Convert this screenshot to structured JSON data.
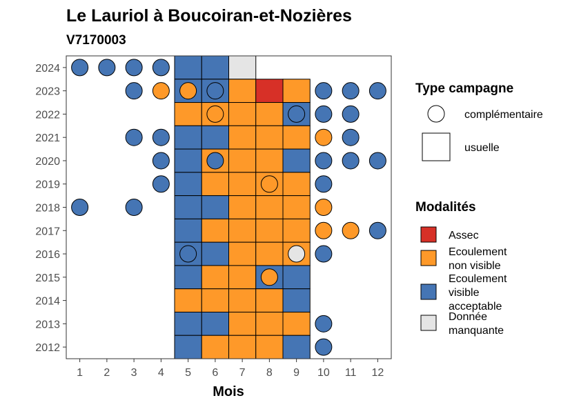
{
  "chart_data": {
    "type": "heatmap",
    "title": "Le Lauriol à Boucoiran-et-Nozières",
    "subtitle": "V7170003",
    "xlabel": "Mois",
    "ylabel": "",
    "x_ticks": [
      "1",
      "2",
      "3",
      "4",
      "5",
      "6",
      "7",
      "8",
      "9",
      "10",
      "11",
      "12"
    ],
    "y_ticks": [
      "2012",
      "2013",
      "2014",
      "2015",
      "2016",
      "2017",
      "2018",
      "2019",
      "2020",
      "2021",
      "2022",
      "2023",
      "2024"
    ],
    "xlim": [
      0.5,
      12.5
    ],
    "ylim": [
      2011.5,
      2024.5
    ],
    "colors": {
      "Assec": "#d73027",
      "Ecoulement non visible": "#fe9929",
      "Ecoulement visible acceptable": "#4575b4",
      "Donnée manquante": "#e5e5e5"
    },
    "legend_campaign": {
      "title": "Type campagne",
      "items": [
        "complémentaire",
        "usuelle"
      ]
    },
    "legend_modalites": {
      "title": "Modalités",
      "items": [
        {
          "key": "Assec",
          "lines": [
            "Assec"
          ]
        },
        {
          "key": "Ecoulement non visible",
          "lines": [
            "Ecoulement",
            "non visible"
          ]
        },
        {
          "key": "Ecoulement visible acceptable",
          "lines": [
            "Ecoulement",
            "visible",
            "acceptable"
          ]
        },
        {
          "key": "Donnée manquante",
          "lines": [
            "Donnée",
            "manquante"
          ]
        }
      ]
    },
    "usuelle": [
      {
        "year": 2024,
        "month": 5,
        "modalite": "Ecoulement visible acceptable"
      },
      {
        "year": 2024,
        "month": 6,
        "modalite": "Ecoulement visible acceptable"
      },
      {
        "year": 2024,
        "month": 7,
        "modalite": "Donnée manquante"
      },
      {
        "year": 2023,
        "month": 5,
        "modalite": "Ecoulement visible acceptable"
      },
      {
        "year": 2023,
        "month": 6,
        "modalite": "Ecoulement visible acceptable"
      },
      {
        "year": 2023,
        "month": 7,
        "modalite": "Ecoulement non visible"
      },
      {
        "year": 2023,
        "month": 8,
        "modalite": "Assec"
      },
      {
        "year": 2023,
        "month": 9,
        "modalite": "Ecoulement non visible"
      },
      {
        "year": 2022,
        "month": 5,
        "modalite": "Ecoulement non visible"
      },
      {
        "year": 2022,
        "month": 6,
        "modalite": "Ecoulement non visible"
      },
      {
        "year": 2022,
        "month": 7,
        "modalite": "Ecoulement non visible"
      },
      {
        "year": 2022,
        "month": 8,
        "modalite": "Ecoulement non visible"
      },
      {
        "year": 2022,
        "month": 9,
        "modalite": "Ecoulement visible acceptable"
      },
      {
        "year": 2021,
        "month": 5,
        "modalite": "Ecoulement visible acceptable"
      },
      {
        "year": 2021,
        "month": 6,
        "modalite": "Ecoulement visible acceptable"
      },
      {
        "year": 2021,
        "month": 7,
        "modalite": "Ecoulement non visible"
      },
      {
        "year": 2021,
        "month": 8,
        "modalite": "Ecoulement non visible"
      },
      {
        "year": 2021,
        "month": 9,
        "modalite": "Ecoulement non visible"
      },
      {
        "year": 2020,
        "month": 5,
        "modalite": "Ecoulement visible acceptable"
      },
      {
        "year": 2020,
        "month": 6,
        "modalite": "Ecoulement non visible"
      },
      {
        "year": 2020,
        "month": 7,
        "modalite": "Ecoulement non visible"
      },
      {
        "year": 2020,
        "month": 8,
        "modalite": "Ecoulement non visible"
      },
      {
        "year": 2020,
        "month": 9,
        "modalite": "Ecoulement visible acceptable"
      },
      {
        "year": 2019,
        "month": 5,
        "modalite": "Ecoulement visible acceptable"
      },
      {
        "year": 2019,
        "month": 6,
        "modalite": "Ecoulement non visible"
      },
      {
        "year": 2019,
        "month": 7,
        "modalite": "Ecoulement non visible"
      },
      {
        "year": 2019,
        "month": 8,
        "modalite": "Ecoulement non visible"
      },
      {
        "year": 2019,
        "month": 9,
        "modalite": "Ecoulement non visible"
      },
      {
        "year": 2018,
        "month": 5,
        "modalite": "Ecoulement visible acceptable"
      },
      {
        "year": 2018,
        "month": 6,
        "modalite": "Ecoulement visible acceptable"
      },
      {
        "year": 2018,
        "month": 7,
        "modalite": "Ecoulement non visible"
      },
      {
        "year": 2018,
        "month": 8,
        "modalite": "Ecoulement non visible"
      },
      {
        "year": 2018,
        "month": 9,
        "modalite": "Ecoulement non visible"
      },
      {
        "year": 2017,
        "month": 5,
        "modalite": "Ecoulement visible acceptable"
      },
      {
        "year": 2017,
        "month": 6,
        "modalite": "Ecoulement non visible"
      },
      {
        "year": 2017,
        "month": 7,
        "modalite": "Ecoulement non visible"
      },
      {
        "year": 2017,
        "month": 8,
        "modalite": "Ecoulement non visible"
      },
      {
        "year": 2017,
        "month": 9,
        "modalite": "Ecoulement non visible"
      },
      {
        "year": 2016,
        "month": 5,
        "modalite": "Ecoulement visible acceptable"
      },
      {
        "year": 2016,
        "month": 6,
        "modalite": "Ecoulement visible acceptable"
      },
      {
        "year": 2016,
        "month": 7,
        "modalite": "Ecoulement non visible"
      },
      {
        "year": 2016,
        "month": 8,
        "modalite": "Ecoulement non visible"
      },
      {
        "year": 2016,
        "month": 9,
        "modalite": "Ecoulement non visible"
      },
      {
        "year": 2015,
        "month": 5,
        "modalite": "Ecoulement visible acceptable"
      },
      {
        "year": 2015,
        "month": 6,
        "modalite": "Ecoulement non visible"
      },
      {
        "year": 2015,
        "month": 7,
        "modalite": "Ecoulement non visible"
      },
      {
        "year": 2015,
        "month": 8,
        "modalite": "Ecoulement visible acceptable"
      },
      {
        "year": 2015,
        "month": 9,
        "modalite": "Ecoulement visible acceptable"
      },
      {
        "year": 2014,
        "month": 5,
        "modalite": "Ecoulement non visible"
      },
      {
        "year": 2014,
        "month": 6,
        "modalite": "Ecoulement non visible"
      },
      {
        "year": 2014,
        "month": 7,
        "modalite": "Ecoulement non visible"
      },
      {
        "year": 2014,
        "month": 8,
        "modalite": "Ecoulement non visible"
      },
      {
        "year": 2014,
        "month": 9,
        "modalite": "Ecoulement visible acceptable"
      },
      {
        "year": 2013,
        "month": 5,
        "modalite": "Ecoulement visible acceptable"
      },
      {
        "year": 2013,
        "month": 6,
        "modalite": "Ecoulement visible acceptable"
      },
      {
        "year": 2013,
        "month": 7,
        "modalite": "Ecoulement non visible"
      },
      {
        "year": 2013,
        "month": 8,
        "modalite": "Ecoulement non visible"
      },
      {
        "year": 2013,
        "month": 9,
        "modalite": "Ecoulement non visible"
      },
      {
        "year": 2012,
        "month": 5,
        "modalite": "Ecoulement visible acceptable"
      },
      {
        "year": 2012,
        "month": 6,
        "modalite": "Ecoulement non visible"
      },
      {
        "year": 2012,
        "month": 7,
        "modalite": "Ecoulement non visible"
      },
      {
        "year": 2012,
        "month": 8,
        "modalite": "Ecoulement non visible"
      },
      {
        "year": 2012,
        "month": 9,
        "modalite": "Ecoulement visible acceptable"
      }
    ],
    "complementaire": [
      {
        "year": 2024,
        "month": 1,
        "modalite": "Ecoulement visible acceptable"
      },
      {
        "year": 2024,
        "month": 2,
        "modalite": "Ecoulement visible acceptable"
      },
      {
        "year": 2024,
        "month": 3,
        "modalite": "Ecoulement visible acceptable"
      },
      {
        "year": 2024,
        "month": 4,
        "modalite": "Ecoulement visible acceptable"
      },
      {
        "year": 2023,
        "month": 3,
        "modalite": "Ecoulement visible acceptable"
      },
      {
        "year": 2023,
        "month": 4,
        "modalite": "Ecoulement non visible"
      },
      {
        "year": 2023,
        "month": 5,
        "modalite": "Ecoulement non visible"
      },
      {
        "year": 2023,
        "month": 6,
        "modalite": "Ecoulement visible acceptable"
      },
      {
        "year": 2023,
        "month": 10,
        "modalite": "Ecoulement visible acceptable"
      },
      {
        "year": 2023,
        "month": 11,
        "modalite": "Ecoulement visible acceptable"
      },
      {
        "year": 2023,
        "month": 12,
        "modalite": "Ecoulement visible acceptable"
      },
      {
        "year": 2022,
        "month": 6,
        "modalite": "Ecoulement non visible"
      },
      {
        "year": 2022,
        "month": 9,
        "modalite": "Ecoulement visible acceptable"
      },
      {
        "year": 2022,
        "month": 10,
        "modalite": "Ecoulement visible acceptable"
      },
      {
        "year": 2022,
        "month": 11,
        "modalite": "Ecoulement visible acceptable"
      },
      {
        "year": 2021,
        "month": 3,
        "modalite": "Ecoulement visible acceptable"
      },
      {
        "year": 2021,
        "month": 4,
        "modalite": "Ecoulement visible acceptable"
      },
      {
        "year": 2021,
        "month": 10,
        "modalite": "Ecoulement non visible"
      },
      {
        "year": 2021,
        "month": 11,
        "modalite": "Ecoulement visible acceptable"
      },
      {
        "year": 2020,
        "month": 4,
        "modalite": "Ecoulement visible acceptable"
      },
      {
        "year": 2020,
        "month": 6,
        "modalite": "Ecoulement visible acceptable"
      },
      {
        "year": 2020,
        "month": 10,
        "modalite": "Ecoulement visible acceptable"
      },
      {
        "year": 2020,
        "month": 11,
        "modalite": "Ecoulement visible acceptable"
      },
      {
        "year": 2020,
        "month": 12,
        "modalite": "Ecoulement visible acceptable"
      },
      {
        "year": 2019,
        "month": 4,
        "modalite": "Ecoulement visible acceptable"
      },
      {
        "year": 2019,
        "month": 8,
        "modalite": "Ecoulement non visible"
      },
      {
        "year": 2019,
        "month": 10,
        "modalite": "Ecoulement visible acceptable"
      },
      {
        "year": 2018,
        "month": 1,
        "modalite": "Ecoulement visible acceptable"
      },
      {
        "year": 2018,
        "month": 3,
        "modalite": "Ecoulement visible acceptable"
      },
      {
        "year": 2018,
        "month": 10,
        "modalite": "Ecoulement non visible"
      },
      {
        "year": 2017,
        "month": 10,
        "modalite": "Ecoulement non visible"
      },
      {
        "year": 2017,
        "month": 11,
        "modalite": "Ecoulement non visible"
      },
      {
        "year": 2017,
        "month": 12,
        "modalite": "Ecoulement visible acceptable"
      },
      {
        "year": 2016,
        "month": 5,
        "modalite": "Ecoulement visible acceptable"
      },
      {
        "year": 2016,
        "month": 9,
        "modalite": "Donnée manquante"
      },
      {
        "year": 2016,
        "month": 10,
        "modalite": "Ecoulement visible acceptable"
      },
      {
        "year": 2015,
        "month": 8,
        "modalite": "Ecoulement non visible"
      },
      {
        "year": 2013,
        "month": 10,
        "modalite": "Ecoulement visible acceptable"
      },
      {
        "year": 2012,
        "month": 10,
        "modalite": "Ecoulement visible acceptable"
      }
    ]
  }
}
